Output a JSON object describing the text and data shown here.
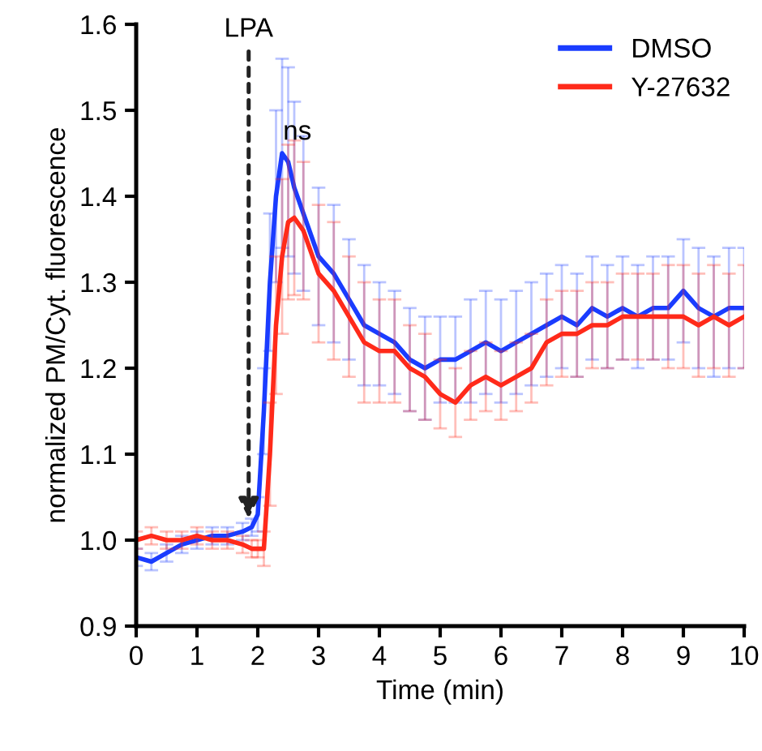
{
  "chart_data": {
    "type": "line",
    "xlabel": "Time (min)",
    "ylabel": "normalized PM/Cyt. fluorescence",
    "xlim": [
      0,
      10
    ],
    "ylim": [
      0.9,
      1.6
    ],
    "xticks": [
      0,
      1,
      2,
      3,
      4,
      5,
      6,
      7,
      8,
      9,
      10
    ],
    "yticks": [
      {
        "value": 0.9,
        "label": "0.9"
      },
      {
        "value": 1.0,
        "label": "1.0"
      },
      {
        "value": 1.1,
        "label": "1.1"
      },
      {
        "value": 1.2,
        "label": "1.2"
      },
      {
        "value": 1.3,
        "label": "1.3"
      },
      {
        "value": 1.4,
        "label": "1.4"
      },
      {
        "value": 1.5,
        "label": "1.5"
      },
      {
        "value": 1.6,
        "label": "1.6"
      }
    ],
    "legend": "top right",
    "grid": false,
    "marker": "none",
    "line_style": "solid",
    "annotations": [
      {
        "text": "LPA",
        "x": 1.85,
        "y": 1.02
      },
      "ns"
    ],
    "x": [
      0,
      0.25,
      0.5,
      0.75,
      1,
      1.25,
      1.5,
      1.75,
      1.9,
      2.0,
      2.1,
      2.2,
      2.3,
      2.4,
      2.5,
      2.6,
      2.75,
      3.0,
      3.25,
      3.5,
      3.75,
      4.0,
      4.25,
      4.5,
      4.75,
      5.0,
      5.25,
      5.5,
      5.75,
      6.0,
      6.25,
      6.5,
      6.75,
      7.0,
      7.25,
      7.5,
      7.75,
      8.0,
      8.25,
      8.5,
      8.75,
      9.0,
      9.25,
      9.5,
      9.75,
      10
    ],
    "series": [
      {
        "name": "DMSO",
        "color": "#1a3cff",
        "values": [
          0.98,
          0.975,
          0.985,
          0.995,
          1.0,
          1.005,
          1.005,
          1.01,
          1.015,
          1.03,
          1.15,
          1.3,
          1.4,
          1.45,
          1.44,
          1.41,
          1.38,
          1.33,
          1.31,
          1.28,
          1.25,
          1.24,
          1.23,
          1.21,
          1.2,
          1.21,
          1.21,
          1.22,
          1.23,
          1.22,
          1.23,
          1.24,
          1.25,
          1.26,
          1.25,
          1.27,
          1.26,
          1.27,
          1.26,
          1.27,
          1.27,
          1.29,
          1.27,
          1.26,
          1.27,
          1.27
        ],
        "errors": [
          0.01,
          0.01,
          0.01,
          0.01,
          0.01,
          0.01,
          0.01,
          0.01,
          0.01,
          0.02,
          0.05,
          0.08,
          0.1,
          0.11,
          0.11,
          0.1,
          0.09,
          0.08,
          0.08,
          0.07,
          0.07,
          0.06,
          0.06,
          0.06,
          0.06,
          0.05,
          0.05,
          0.06,
          0.06,
          0.06,
          0.06,
          0.06,
          0.06,
          0.06,
          0.06,
          0.06,
          0.06,
          0.06,
          0.06,
          0.06,
          0.06,
          0.06,
          0.07,
          0.07,
          0.07,
          0.07
        ]
      },
      {
        "name": "Y-27632",
        "color": "#ff2a1a",
        "values": [
          1.0,
          1.005,
          1.0,
          1.0,
          1.005,
          1.0,
          1.0,
          0.995,
          0.99,
          0.99,
          0.99,
          1.1,
          1.25,
          1.33,
          1.37,
          1.375,
          1.36,
          1.31,
          1.29,
          1.26,
          1.23,
          1.22,
          1.22,
          1.2,
          1.19,
          1.17,
          1.16,
          1.18,
          1.19,
          1.18,
          1.19,
          1.2,
          1.23,
          1.24,
          1.24,
          1.25,
          1.25,
          1.26,
          1.26,
          1.26,
          1.26,
          1.26,
          1.25,
          1.26,
          1.25,
          1.26
        ],
        "errors": [
          0.01,
          0.01,
          0.01,
          0.01,
          0.01,
          0.01,
          0.01,
          0.01,
          0.01,
          0.01,
          0.02,
          0.06,
          0.08,
          0.09,
          0.09,
          0.09,
          0.08,
          0.08,
          0.08,
          0.07,
          0.07,
          0.06,
          0.06,
          0.05,
          0.05,
          0.04,
          0.04,
          0.04,
          0.04,
          0.04,
          0.04,
          0.04,
          0.05,
          0.05,
          0.05,
          0.05,
          0.05,
          0.05,
          0.05,
          0.05,
          0.06,
          0.06,
          0.06,
          0.06,
          0.06,
          0.06
        ]
      }
    ]
  }
}
